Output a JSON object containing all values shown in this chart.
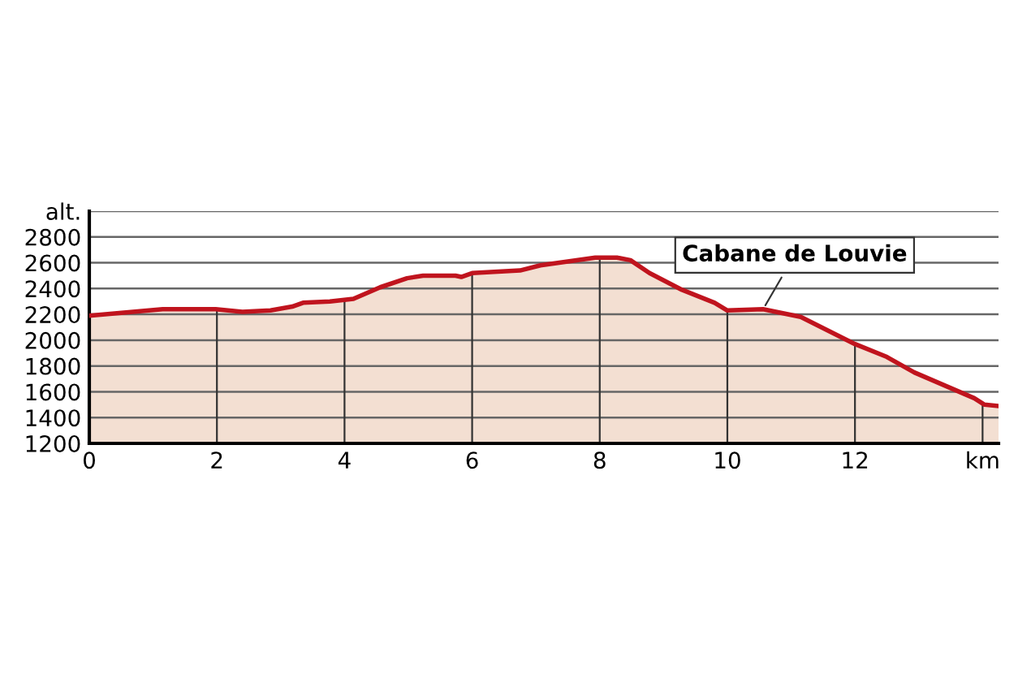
{
  "chart_data": {
    "type": "area",
    "x": [
      0,
      1.15,
      1.98,
      2.4,
      2.84,
      3.18,
      3.35,
      3.77,
      4.14,
      4.56,
      4.98,
      5.23,
      5.74,
      5.83,
      6.0,
      6.75,
      7.07,
      7.93,
      8.27,
      8.48,
      8.78,
      9.29,
      9.8,
      10.0,
      10.56,
      11.15,
      12.0,
      12.5,
      12.93,
      13.87,
      14.03,
      14.25
    ],
    "series": [
      {
        "color": "#c0141e",
        "values": [
          2190,
          2240,
          2240,
          2220,
          2230,
          2260,
          2290,
          2300,
          2320,
          2410,
          2480,
          2500,
          2500,
          2490,
          2520,
          2540,
          2580,
          2640,
          2640,
          2620,
          2520,
          2390,
          2290,
          2230,
          2240,
          2180,
          1970,
          1870,
          1750,
          1550,
          1500,
          1490
        ]
      }
    ],
    "xlim": [
      0,
      14.25
    ],
    "xticks": [
      0,
      2,
      4,
      6,
      8,
      10,
      12,
      {
        "value": 14,
        "label": "km"
      }
    ],
    "ylim": [
      1200,
      3000
    ],
    "yticks": [
      1200,
      1400,
      1600,
      1800,
      2000,
      2200,
      2400,
      2600,
      2800,
      {
        "value": 3000,
        "label": "alt."
      }
    ],
    "grid": true,
    "annotations": [
      {
        "text": "Cabane de Louvie",
        "x": 10.56,
        "y": 2240
      }
    ]
  }
}
